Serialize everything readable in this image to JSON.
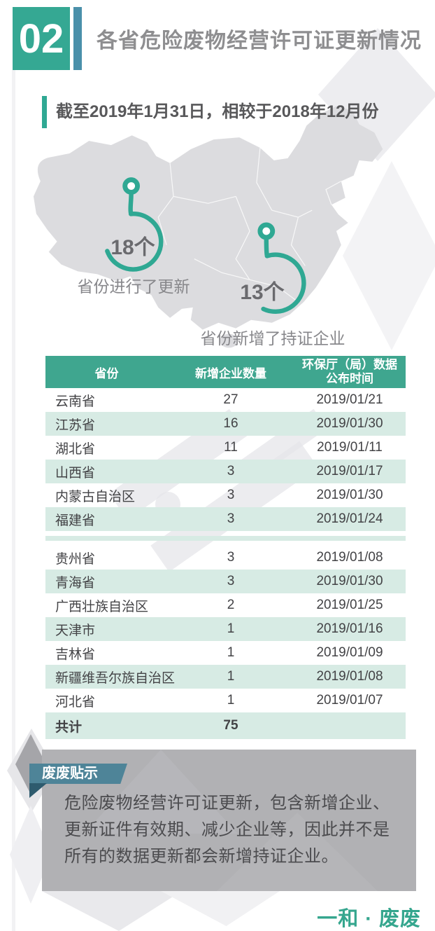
{
  "header": {
    "number": "02"
  },
  "chart_data": {
    "type": "table",
    "title": "各省危险废物经营许可证更新情况",
    "subtitle": "截至2019年1月31日，相较于2018年12月份",
    "stats": [
      {
        "value": "18个",
        "label": "省份进行了更新"
      },
      {
        "value": "13个",
        "label": "省份新增了持证企业"
      }
    ],
    "columns": [
      "省份",
      "新增企业数量",
      "环保厅（局）数据公布时间"
    ],
    "col3_lines": [
      "环保厅（局）数据",
      "公布时间"
    ],
    "rows": [
      {
        "province": "云南省",
        "count": "27",
        "date": "2019/01/21"
      },
      {
        "province": "江苏省",
        "count": "16",
        "date": "2019/01/30"
      },
      {
        "province": "湖北省",
        "count": "11",
        "date": "2019/01/11"
      },
      {
        "province": "山西省",
        "count": "3",
        "date": "2019/01/17"
      },
      {
        "province": "内蒙古自治区",
        "count": "3",
        "date": "2019/01/30"
      },
      {
        "province": "福建省",
        "count": "3",
        "date": "2019/01/24"
      },
      {
        "province": "贵州省",
        "count": "3",
        "date": "2019/01/08"
      },
      {
        "province": "青海省",
        "count": "3",
        "date": "2019/01/30"
      },
      {
        "province": "广西壮族自治区",
        "count": "2",
        "date": "2019/01/25"
      },
      {
        "province": "天津市",
        "count": "1",
        "date": "2019/01/16"
      },
      {
        "province": "吉林省",
        "count": "1",
        "date": "2019/01/09"
      },
      {
        "province": "新疆维吾尔族自治区",
        "count": "1",
        "date": "2019/01/08"
      },
      {
        "province": "河北省",
        "count": "1",
        "date": "2019/01/07"
      }
    ],
    "total": {
      "label": "共计",
      "count": "75"
    }
  },
  "note": {
    "tag": "废废贴示",
    "text": "危险废物经营许可证更新，包含新增企业、更新证件有效期、减少企业等，因此并不是所有的数据更新都会新增持证企业。"
  },
  "footer": {
    "brand": "一和 · 废废"
  },
  "colors": {
    "accent_teal": "#2fa893",
    "table_header_teal": "#3fa68f",
    "row_stripe_teal": "#d7ebe4",
    "blue_bar": "#4a90aa",
    "ribbon_teal_blue": "#4e8498",
    "note_box_gray": "#b1b1b4",
    "map_gray": "#dcdcdf",
    "brand_green": "#35a68e"
  }
}
